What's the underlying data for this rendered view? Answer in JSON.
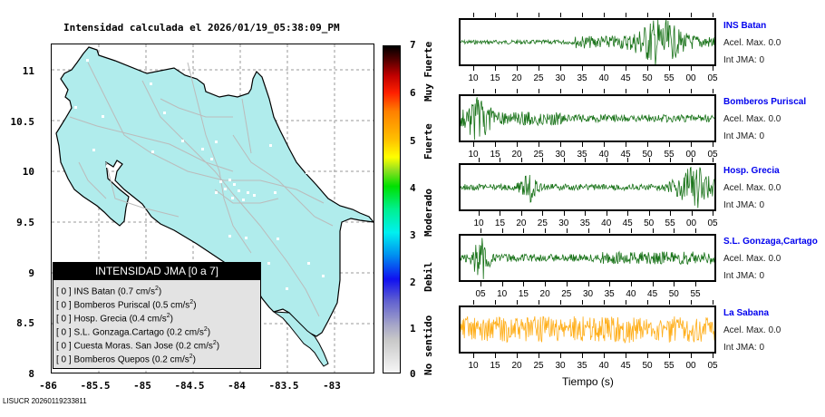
{
  "title": "Intensidad calculada el 2026/01/19_05:38:09_PM",
  "map": {
    "y_ticks": [
      "11",
      "10.5",
      "10",
      "9.5",
      "9",
      "8.5",
      "8"
    ],
    "x_ticks": [
      "-86",
      "-85.5",
      "-85",
      "-84.5",
      "-84",
      "-83.5",
      "-83"
    ],
    "land_color": "#b0ecec",
    "road_color": "#bbbbbb"
  },
  "legend": {
    "header": "INTENSIDAD JMA [0 a 7]",
    "rows": [
      {
        "prefix": "[ 0 ]",
        "text": "INS Batan (0.7 cm/s",
        "sup": "2",
        "close": ")"
      },
      {
        "prefix": "[ 0 ]",
        "text": "Bomberos Puriscal (0.5 cm/s",
        "sup": "2",
        "close": ")"
      },
      {
        "prefix": "[ 0 ]",
        "text": "Hosp. Grecia (0.4 cm/s",
        "sup": "2",
        "close": ")"
      },
      {
        "prefix": "[ 0 ]",
        "text": "S.L. Gonzaga.Cartago (0.2 cm/s",
        "sup": "2",
        "close": ")"
      },
      {
        "prefix": "[ 0 ]",
        "text": "Cuesta Moras. San Jose (0.2 cm/s",
        "sup": "2",
        "close": ")"
      },
      {
        "prefix": "[ 0 ]",
        "text": "Bomberos Quepos (0.2 cm/s",
        "sup": "2",
        "close": ")"
      }
    ]
  },
  "colorbar": {
    "numbers": [
      "7",
      "6",
      "5",
      "4",
      "3",
      "2",
      "1",
      "0"
    ],
    "words": [
      "Muy Fuerte",
      "Fuerte",
      "Moderado",
      "Debil",
      "No sentido"
    ]
  },
  "footer": "LISUCR 20260119233811",
  "seismograms": [
    {
      "name": "INS Batan",
      "acel": "Acel. Max. 0.0",
      "int": "Int JMA: 0",
      "color": "#006400",
      "ticks": [
        "10",
        "15",
        "20",
        "25",
        "30",
        "35",
        "40",
        "45",
        "50",
        "55",
        "00",
        "05"
      ]
    },
    {
      "name": "Bomberos Puriscal",
      "acel": "Acel. Max. 0.0",
      "int": "Int JMA: 0",
      "color": "#006400",
      "ticks": [
        "10",
        "15",
        "20",
        "25",
        "30",
        "35",
        "40",
        "45",
        "50",
        "55",
        "00",
        "05"
      ]
    },
    {
      "name": "Hosp. Grecia",
      "acel": "Acel. Max. 0.0",
      "int": "Int JMA: 0",
      "color": "#006400",
      "ticks": [
        "10",
        "15",
        "20",
        "25",
        "30",
        "35",
        "40",
        "45",
        "50",
        "55",
        "00",
        "05"
      ]
    },
    {
      "name": "S.L. Gonzaga,Cartago",
      "acel": "Acel. Max. 0.0",
      "int": "Int JMA: 0",
      "color": "#006400",
      "ticks": [
        "05",
        "10",
        "15",
        "20",
        "25",
        "30",
        "35",
        "40",
        "45",
        "50",
        "55"
      ]
    },
    {
      "name": "La Sabana",
      "acel": "Acel. Max. 0.0",
      "int": "Int JMA: 0",
      "color": "#ffa500",
      "ticks": [
        "10",
        "15",
        "20",
        "25",
        "30",
        "35",
        "40",
        "45",
        "50",
        "55",
        "00",
        "05"
      ]
    }
  ],
  "time_axis_label": "Tiempo (s)"
}
